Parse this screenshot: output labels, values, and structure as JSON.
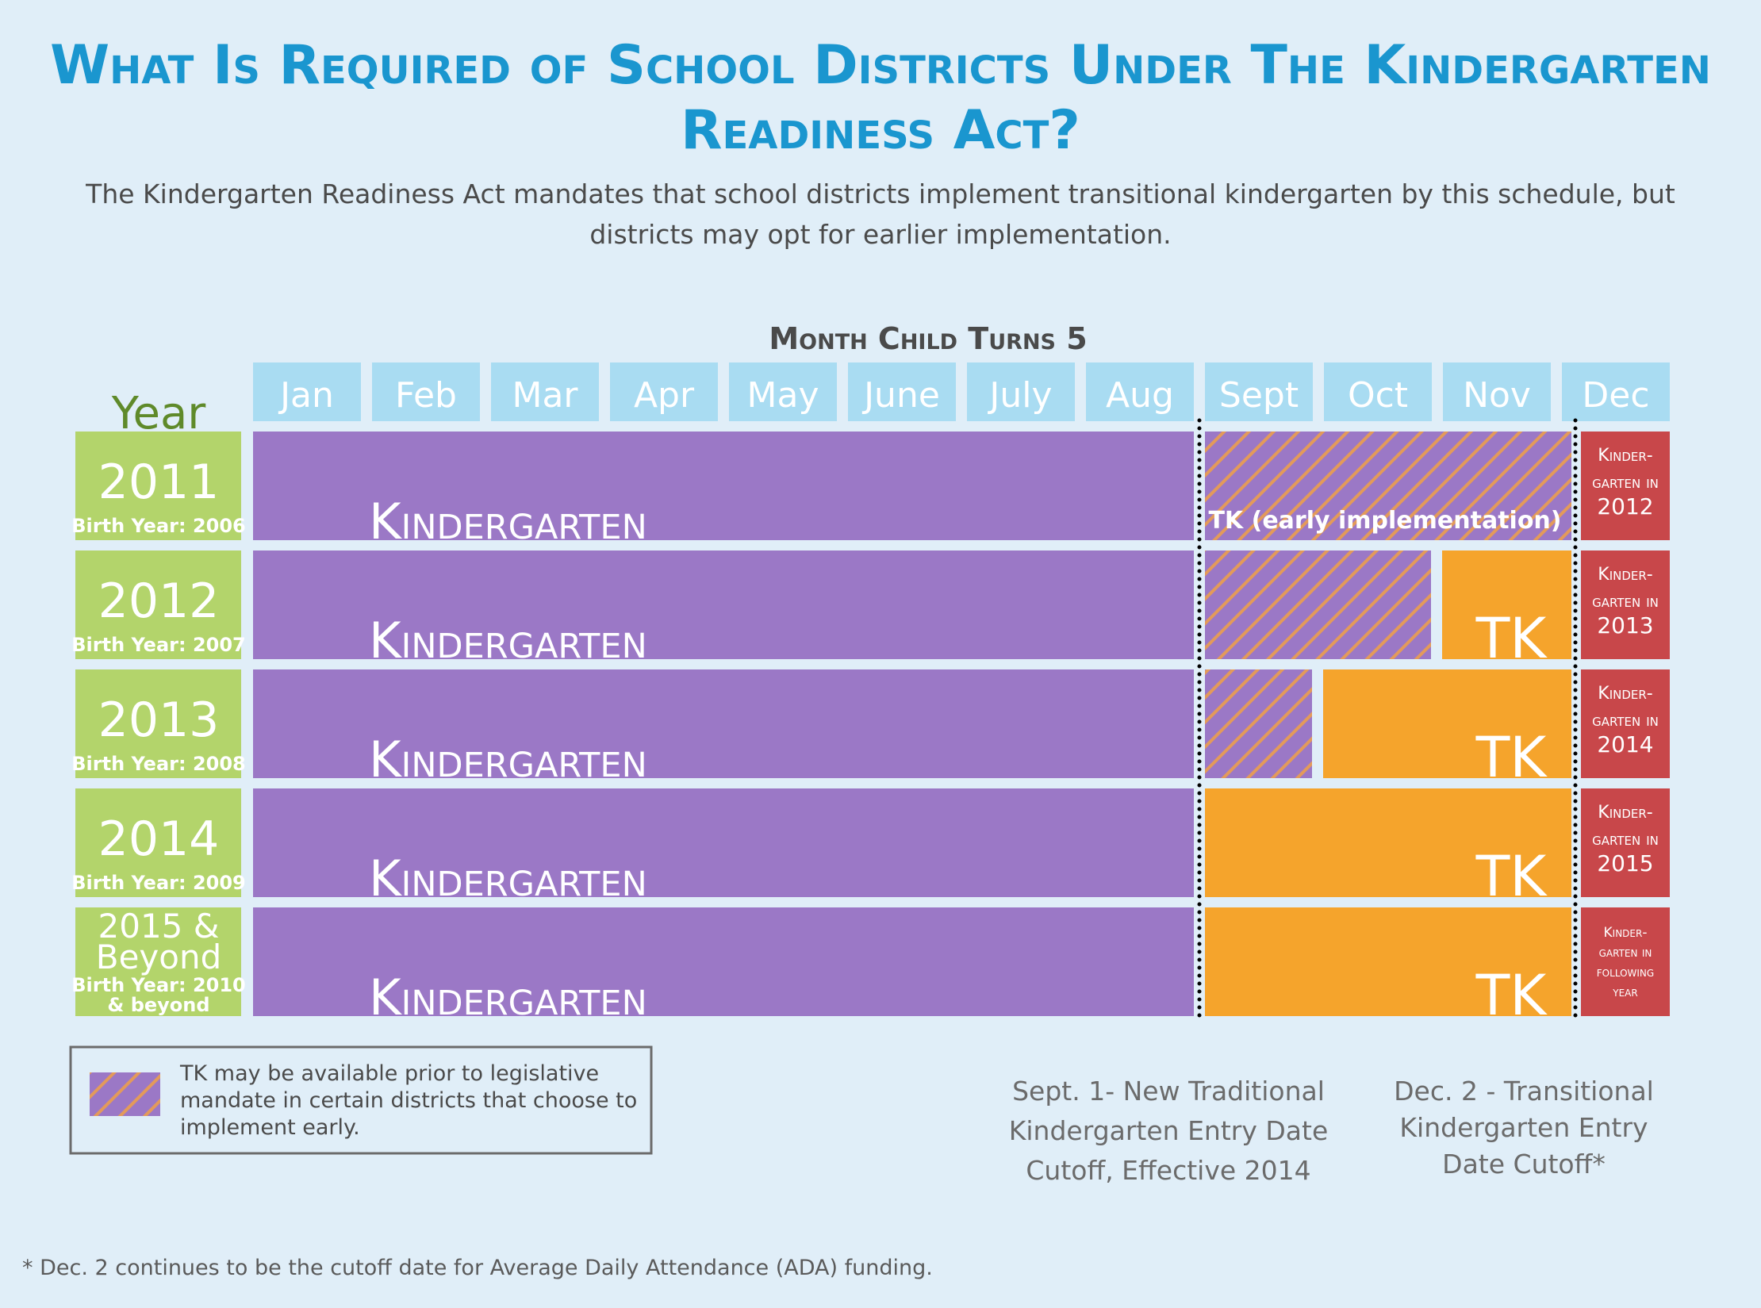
{
  "header": {
    "title": [
      "What Is Required of School Districts Under The Kindergarten",
      "Readiness Act?"
    ],
    "subtitle": [
      "The Kindergarten Readiness Act mandates that school districts implement transitional kindergarten by this schedule, but",
      "districts may opt for earlier implementation."
    ]
  },
  "timeline": {
    "axis_title": "Month Child Turns 5",
    "year_label": "Year",
    "months": [
      "Jan",
      "Feb",
      "Mar",
      "Apr",
      "May",
      "June",
      "July",
      "Aug",
      "Sept",
      "Oct",
      "Nov",
      "Dec"
    ],
    "rows": [
      {
        "year": [
          "2011"
        ],
        "birth": [
          "Birth Year: 2006"
        ],
        "kindergarten": "Kindergarten",
        "tk": "TK (early implementation)",
        "next": [
          "Kinder-",
          "garten in",
          "2012"
        ]
      },
      {
        "year": [
          "2012"
        ],
        "birth": [
          "Birth Year: 2007"
        ],
        "kindergarten": "Kindergarten",
        "tk": "TK",
        "next": [
          "Kinder-",
          "garten in",
          "2013"
        ]
      },
      {
        "year": [
          "2013"
        ],
        "birth": [
          "Birth Year: 2008"
        ],
        "kindergarten": "Kindergarten",
        "tk": "TK",
        "next": [
          "Kinder-",
          "garten in",
          "2014"
        ]
      },
      {
        "year": [
          "2014"
        ],
        "birth": [
          "Birth Year: 2009"
        ],
        "kindergarten": "Kindergarten",
        "tk": "TK",
        "next": [
          "Kinder-",
          "garten in",
          "2015"
        ]
      },
      {
        "year": [
          "2015 &",
          "Beyond"
        ],
        "birth": [
          "Birth Year: 2010",
          "& beyond"
        ],
        "kindergarten": "Kindergarten",
        "tk": "TK",
        "next": [
          "Kinder-",
          "garten in",
          "following",
          "year"
        ]
      }
    ]
  },
  "legend": {
    "text": [
      "TK may be available prior to legislative",
      "mandate in certain districts that choose to",
      "implement early."
    ]
  },
  "notes": {
    "sept": [
      "Sept. 1- New Traditional",
      "Kindergarten Entry Date",
      "Cutoff, Effective 2014"
    ],
    "dec": [
      "Dec. 2 - Transitional",
      "Kindergarten Entry",
      "Date Cutoff*"
    ]
  },
  "footnote": "* Dec. 2 continues to be the cutoff date for Average Daily Attendance (ADA) funding."
}
